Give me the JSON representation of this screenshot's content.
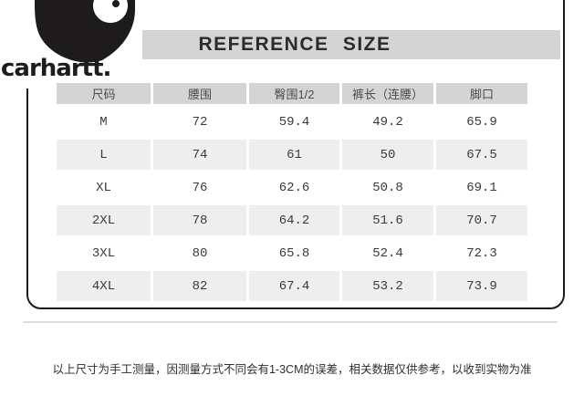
{
  "header": {
    "brand": "carhartt.",
    "title": "REFERENCE SIZE"
  },
  "table": {
    "headers": [
      "尺码",
      "腰围",
      "臀围1/2",
      "裤长（连腰）",
      "脚口"
    ],
    "rows": [
      [
        "M",
        "72",
        "59.4",
        "49.2",
        "65.9"
      ],
      [
        "L",
        "74",
        "61",
        "50",
        "67.5"
      ],
      [
        "XL",
        "76",
        "62.6",
        "50.8",
        "69.1"
      ],
      [
        "2XL",
        "78",
        "64.2",
        "51.6",
        "70.7"
      ],
      [
        "3XL",
        "80",
        "65.8",
        "52.4",
        "72.3"
      ],
      [
        "4XL",
        "82",
        "67.4",
        "53.2",
        "73.9"
      ]
    ]
  },
  "footer": {
    "note": "以上尺寸为手工测量，因测量方式不同会有1-3CM的误差，相关数据仅供参考，以收到实物为准"
  },
  "colors": {
    "band_gray": "#d4d4d4",
    "stripe_gray": "#eeeeee",
    "frame_black": "#1a1a1a",
    "logo_black": "#1d1b1c",
    "text_dark": "#3a3a3a"
  }
}
